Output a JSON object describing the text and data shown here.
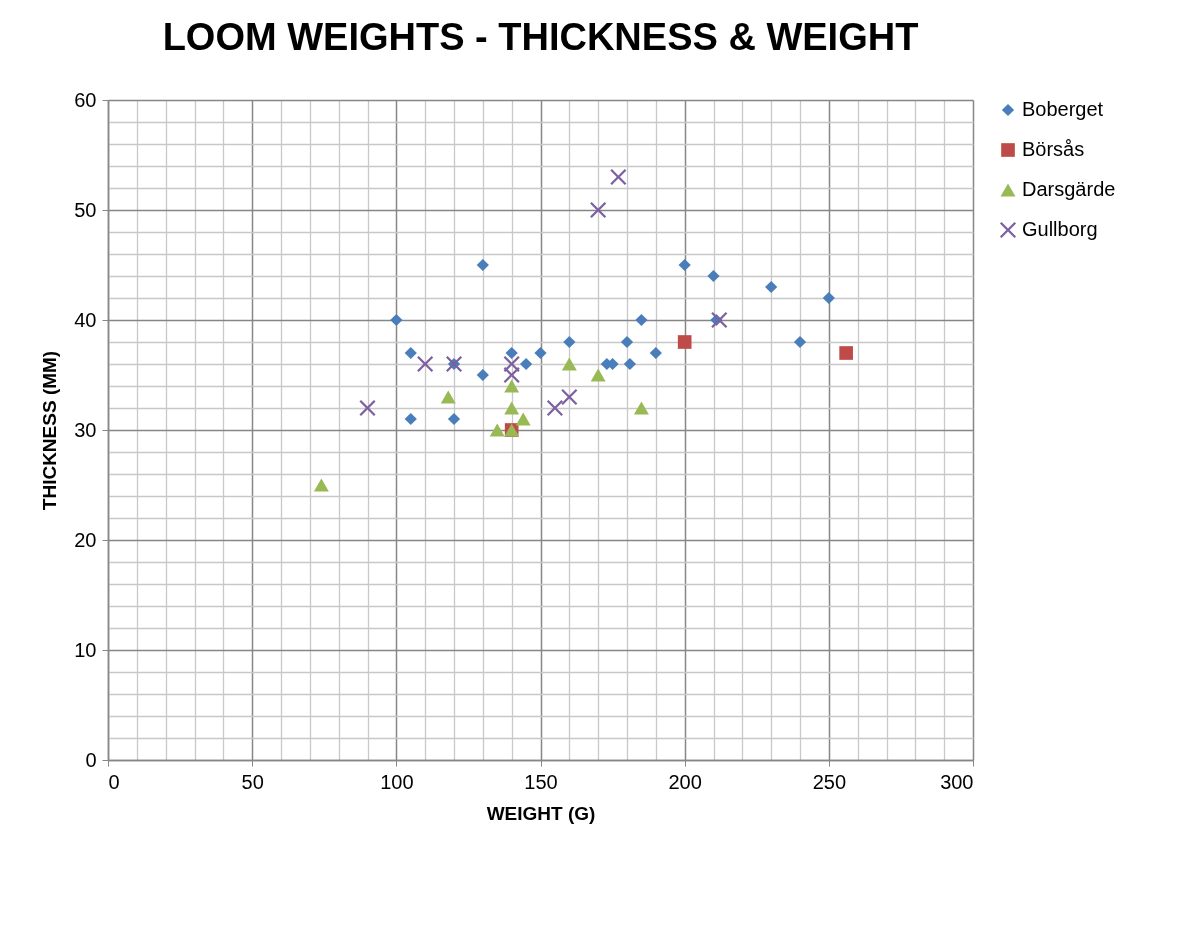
{
  "chart_data": {
    "type": "scatter",
    "title": "LOOM WEIGHTS - THICKNESS & WEIGHT",
    "xlabel": "WEIGHT (G)",
    "ylabel": "THICKNESS (MM)",
    "xlim": [
      0,
      300
    ],
    "ylim": [
      0,
      60
    ],
    "xticks": [
      0,
      {
        "value": 10,
        "label": null
      },
      {
        "value": 20,
        "label": null
      },
      {
        "value": 30,
        "label": null
      },
      {
        "value": 40,
        "label": null
      },
      50,
      {
        "value": 60,
        "label": null
      },
      {
        "value": 70,
        "label": null
      },
      {
        "value": 80,
        "label": null
      },
      {
        "value": 90,
        "label": null
      },
      100,
      {
        "value": 110,
        "label": null
      },
      {
        "value": 120,
        "label": null
      },
      {
        "value": 130,
        "label": null
      },
      {
        "value": 140,
        "label": null
      },
      150,
      {
        "value": 160,
        "label": null
      },
      {
        "value": 170,
        "label": null
      },
      {
        "value": 180,
        "label": null
      },
      {
        "value": 190,
        "label": null
      },
      200,
      {
        "value": 210,
        "label": null
      },
      {
        "value": 220,
        "label": null
      },
      {
        "value": 230,
        "label": null
      },
      {
        "value": 240,
        "label": null
      },
      250,
      {
        "value": 260,
        "label": null
      },
      {
        "value": 270,
        "label": null
      },
      {
        "value": 280,
        "label": null
      },
      {
        "value": 290,
        "label": null
      },
      300
    ],
    "yticks": [
      0,
      {
        "value": 2,
        "label": null
      },
      {
        "value": 4,
        "label": null
      },
      {
        "value": 6,
        "label": null
      },
      {
        "value": 8,
        "label": null
      },
      10,
      {
        "value": 12,
        "label": null
      },
      {
        "value": 14,
        "label": null
      },
      {
        "value": 16,
        "label": null
      },
      {
        "value": 18,
        "label": null
      },
      20,
      {
        "value": 22,
        "label": null
      },
      {
        "value": 24,
        "label": null
      },
      {
        "value": 26,
        "label": null
      },
      {
        "value": 28,
        "label": null
      },
      30,
      {
        "value": 32,
        "label": null
      },
      {
        "value": 34,
        "label": null
      },
      {
        "value": 36,
        "label": null
      },
      {
        "value": 38,
        "label": null
      },
      40,
      {
        "value": 42,
        "label": null
      },
      {
        "value": 44,
        "label": null
      },
      {
        "value": 46,
        "label": null
      },
      {
        "value": 48,
        "label": null
      },
      50,
      {
        "value": 52,
        "label": null
      },
      {
        "value": 54,
        "label": null
      },
      {
        "value": 56,
        "label": null
      },
      {
        "value": 58,
        "label": null
      },
      60
    ],
    "grid": true,
    "legend": "right",
    "series": [
      {
        "name": "Boberget",
        "color": "#4a7ebb",
        "marker": "diamond",
        "x": [
          100,
          105,
          105,
          120,
          120,
          130,
          130,
          140,
          145,
          150,
          160,
          173,
          175,
          181,
          180,
          185,
          190,
          200,
          210,
          211,
          230,
          240,
          250
        ],
        "values": [
          40,
          37,
          31,
          36,
          31,
          45,
          35,
          37,
          36,
          37,
          38,
          36,
          36,
          36,
          38,
          40,
          37,
          45,
          44,
          40,
          43,
          38,
          42
        ]
      },
      {
        "name": "Börsås",
        "color": "#be4b48",
        "marker": "square",
        "x": [
          140,
          200,
          256
        ],
        "values": [
          30,
          38,
          37
        ]
      },
      {
        "name": "Darsgärde",
        "color": "#98b954",
        "marker": "triangle",
        "x": [
          74,
          118,
          135,
          140,
          140,
          140,
          144,
          160,
          170,
          185
        ],
        "values": [
          25,
          33,
          30,
          30,
          32,
          34,
          31,
          36,
          35,
          32
        ]
      },
      {
        "name": "Gullborg",
        "color": "#7d60a0",
        "marker": "cross",
        "x": [
          90,
          110,
          120,
          140,
          140,
          155,
          160,
          170,
          177,
          212
        ],
        "values": [
          32,
          36,
          36,
          36,
          35,
          32,
          33,
          50,
          53,
          40
        ]
      }
    ]
  }
}
